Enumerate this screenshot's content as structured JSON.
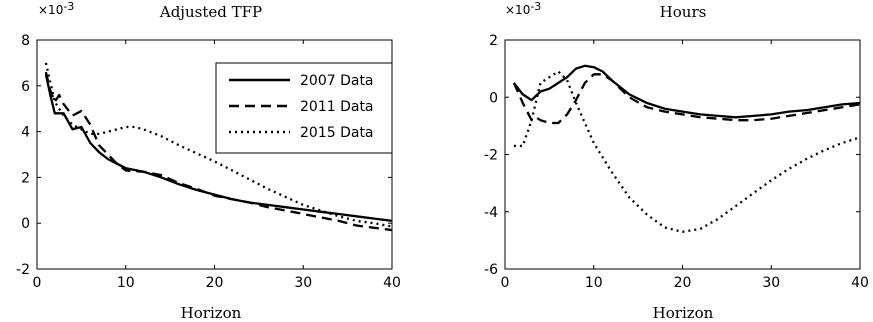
{
  "chart_data": [
    {
      "type": "line",
      "title": "Adjusted TFP",
      "xlabel": "Horizon",
      "ylabel": "",
      "multiplier_label": "×10",
      "multiplier_exp": "-3",
      "xlim": [
        0,
        40
      ],
      "ylim": [
        -2,
        8
      ],
      "xticks": [
        0,
        10,
        20,
        30,
        40
      ],
      "yticks": [
        -2,
        0,
        2,
        4,
        6,
        8
      ],
      "grid": false,
      "legend_position": "top-right",
      "series": [
        {
          "name": "2007 Data",
          "style": "solid",
          "x": [
            1,
            1.5,
            2,
            3,
            4,
            5,
            6,
            7,
            8,
            9,
            10,
            12,
            14,
            16,
            18,
            20,
            22,
            24,
            26,
            28,
            30,
            32,
            34,
            36,
            38,
            40
          ],
          "y": [
            6.5,
            5.6,
            4.8,
            4.8,
            4.1,
            4.2,
            3.5,
            3.1,
            2.8,
            2.6,
            2.4,
            2.25,
            2.0,
            1.7,
            1.45,
            1.25,
            1.05,
            0.9,
            0.8,
            0.7,
            0.6,
            0.5,
            0.4,
            0.3,
            0.2,
            0.1
          ]
        },
        {
          "name": "2011 Data",
          "style": "dashed",
          "x": [
            1,
            1.5,
            2,
            2.5,
            3,
            4,
            5,
            6,
            7,
            8,
            9,
            10,
            12,
            14,
            16,
            18,
            20,
            22,
            24,
            26,
            28,
            30,
            32,
            34,
            36,
            38,
            40
          ],
          "y": [
            6.6,
            5.8,
            5.3,
            5.6,
            5.2,
            4.7,
            4.9,
            4.3,
            3.4,
            3.0,
            2.6,
            2.3,
            2.25,
            2.1,
            1.75,
            1.5,
            1.2,
            1.05,
            0.9,
            0.7,
            0.55,
            0.4,
            0.25,
            0.1,
            -0.1,
            -0.2,
            -0.3
          ]
        },
        {
          "name": "2015 Data",
          "style": "dotted",
          "x": [
            1,
            2,
            3,
            4,
            5,
            6,
            7,
            8,
            9,
            10,
            11,
            12,
            14,
            16,
            18,
            20,
            22,
            24,
            26,
            28,
            30,
            32,
            34,
            36,
            38,
            40
          ],
          "y": [
            7.0,
            5.3,
            4.7,
            4.3,
            4.1,
            3.9,
            3.9,
            4.0,
            4.1,
            4.2,
            4.2,
            4.1,
            3.8,
            3.4,
            3.05,
            2.7,
            2.3,
            1.9,
            1.5,
            1.15,
            0.8,
            0.55,
            0.3,
            0.1,
            0.0,
            -0.15
          ]
        }
      ]
    },
    {
      "type": "line",
      "title": "Hours",
      "xlabel": "Horizon",
      "ylabel": "",
      "multiplier_label": "×10",
      "multiplier_exp": "-3",
      "xlim": [
        0,
        40
      ],
      "ylim": [
        -6,
        2
      ],
      "xticks": [
        0,
        10,
        20,
        30,
        40
      ],
      "yticks": [
        -6,
        -4,
        -2,
        0,
        2
      ],
      "grid": false,
      "series": [
        {
          "name": "2007 Data",
          "style": "solid",
          "x": [
            1,
            2,
            3,
            4,
            5,
            6,
            7,
            8,
            9,
            10,
            11,
            12,
            14,
            16,
            18,
            20,
            22,
            24,
            26,
            28,
            30,
            32,
            34,
            36,
            38,
            40
          ],
          "y": [
            0.5,
            0.1,
            -0.1,
            0.2,
            0.3,
            0.5,
            0.7,
            1.0,
            1.1,
            1.05,
            0.9,
            0.6,
            0.1,
            -0.2,
            -0.4,
            -0.5,
            -0.6,
            -0.65,
            -0.7,
            -0.65,
            -0.6,
            -0.5,
            -0.45,
            -0.35,
            -0.25,
            -0.2
          ]
        },
        {
          "name": "2011 Data",
          "style": "dashed",
          "x": [
            1,
            2,
            2.5,
            3,
            3.5,
            4,
            5,
            6,
            7,
            8,
            9,
            10,
            11,
            12,
            14,
            16,
            18,
            20,
            22,
            24,
            26,
            28,
            30,
            32,
            34,
            36,
            38,
            40
          ],
          "y": [
            0.5,
            -0.2,
            -0.5,
            -0.8,
            -0.7,
            -0.8,
            -0.9,
            -0.9,
            -0.6,
            -0.1,
            0.5,
            0.8,
            0.8,
            0.6,
            0.0,
            -0.35,
            -0.5,
            -0.6,
            -0.7,
            -0.75,
            -0.8,
            -0.8,
            -0.75,
            -0.65,
            -0.55,
            -0.45,
            -0.35,
            -0.25
          ]
        },
        {
          "name": "2015 Data",
          "style": "dotted",
          "x": [
            1,
            2,
            3,
            4,
            5,
            6,
            7,
            8,
            9,
            10,
            12,
            14,
            16,
            18,
            20,
            22,
            24,
            26,
            28,
            30,
            32,
            34,
            36,
            38,
            40
          ],
          "y": [
            -1.7,
            -1.7,
            -0.8,
            0.5,
            0.7,
            0.9,
            0.6,
            -0.2,
            -0.9,
            -1.6,
            -2.6,
            -3.5,
            -4.1,
            -4.55,
            -4.7,
            -4.6,
            -4.25,
            -3.8,
            -3.35,
            -2.9,
            -2.5,
            -2.15,
            -1.85,
            -1.6,
            -1.4
          ]
        }
      ]
    }
  ]
}
